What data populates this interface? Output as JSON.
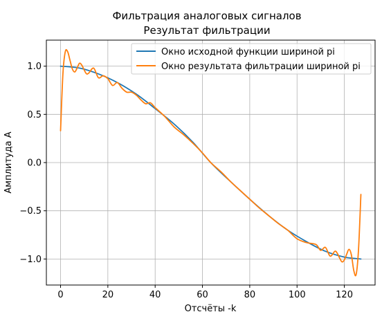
{
  "chart_data": {
    "type": "line",
    "title": "Фильтрация аналоговых сигналов",
    "subtitle": "Результат фильтрации",
    "xlabel": "Отсчёты -k",
    "ylabel": "Амплитуда A",
    "xlim": [
      -6,
      133
    ],
    "ylim": [
      -1.27,
      1.27
    ],
    "xticks": [
      0,
      20,
      40,
      60,
      80,
      100,
      120
    ],
    "yticks": [
      -1.0,
      -0.5,
      0.0,
      0.5,
      1.0
    ],
    "xtick_labels": [
      "0",
      "20",
      "40",
      "60",
      "80",
      "100",
      "120"
    ],
    "ytick_labels": [
      "−1.0",
      "−0.5",
      "0.0",
      "0.5",
      "1.0"
    ],
    "grid": true,
    "legend_position": "top-right",
    "series": [
      {
        "name": "Окно исходной функции шириной pi",
        "color": "#1f77b4",
        "x": [
          0,
          8,
          16,
          24,
          32,
          40,
          48,
          56,
          63.5,
          72,
          80,
          88,
          96,
          104,
          112,
          120,
          127
        ],
        "y": [
          1.0,
          0.98,
          0.92,
          0.83,
          0.71,
          0.56,
          0.4,
          0.21,
          0.0,
          -0.2,
          -0.38,
          -0.55,
          -0.7,
          -0.82,
          -0.92,
          -0.98,
          -1.0
        ]
      },
      {
        "name": "Окно результата фильтрации шириной pi",
        "color": "#ff7f0e",
        "x": [
          0,
          1,
          2,
          3,
          4,
          5,
          6,
          7,
          8,
          9,
          10,
          11,
          12,
          14,
          16,
          18,
          20,
          22,
          24,
          26,
          28,
          30,
          32,
          34,
          36,
          38,
          40,
          44,
          48,
          52,
          56,
          60,
          63.5,
          68,
          72,
          76,
          80,
          84,
          88,
          92,
          96,
          100,
          104,
          108,
          110,
          112,
          114,
          116,
          117,
          118,
          119,
          120,
          121,
          122,
          123,
          124,
          125,
          126,
          127
        ],
        "y": [
          0.33,
          0.92,
          1.15,
          1.15,
          1.06,
          0.97,
          0.94,
          0.98,
          1.03,
          1.01,
          0.96,
          0.92,
          0.93,
          0.98,
          0.88,
          0.9,
          0.87,
          0.8,
          0.83,
          0.77,
          0.73,
          0.73,
          0.7,
          0.65,
          0.61,
          0.62,
          0.57,
          0.48,
          0.37,
          0.29,
          0.2,
          0.1,
          0.0,
          -0.1,
          -0.2,
          -0.29,
          -0.38,
          -0.47,
          -0.55,
          -0.63,
          -0.7,
          -0.79,
          -0.83,
          -0.85,
          -0.91,
          -0.88,
          -0.97,
          -0.92,
          -0.94,
          -0.99,
          -1.03,
          -1.01,
          -0.95,
          -0.9,
          -0.96,
          -1.12,
          -1.16,
          -0.9,
          -0.33
        ]
      }
    ]
  }
}
